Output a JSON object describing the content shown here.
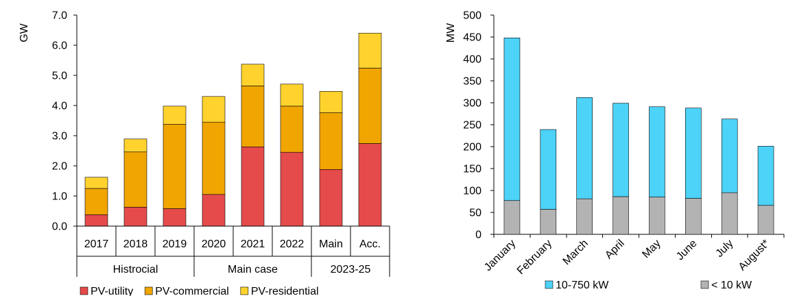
{
  "chart_data": [
    {
      "type": "bar",
      "stacked": true,
      "ylabel": "GW",
      "ylim": [
        0,
        7
      ],
      "yticks": [
        "0.0",
        "1.0",
        "2.0",
        "3.0",
        "4.0",
        "5.0",
        "6.0",
        "7.0"
      ],
      "categories": [
        "2017",
        "2018",
        "2019",
        "2020",
        "2021",
        "2022",
        "Main",
        "Acc."
      ],
      "groups": [
        {
          "label": "Histrocial",
          "span": 3
        },
        {
          "label": "Main case",
          "span": 3
        },
        {
          "label": "2023-25",
          "span": 2
        }
      ],
      "series": [
        {
          "name": "PV-utility",
          "color": "#e54b4b",
          "values": [
            0.38,
            0.63,
            0.58,
            1.05,
            2.63,
            2.45,
            1.88,
            2.74
          ]
        },
        {
          "name": "PV-commercial",
          "color": "#f0a500",
          "values": [
            0.87,
            1.83,
            2.8,
            2.4,
            2.02,
            1.53,
            1.88,
            2.5
          ]
        },
        {
          "name": "PV-residential",
          "color": "#ffd22e",
          "values": [
            0.37,
            0.43,
            0.6,
            0.85,
            0.72,
            0.73,
            0.71,
            1.16
          ]
        }
      ],
      "legend_position": "bottom"
    },
    {
      "type": "bar",
      "stacked": true,
      "ylabel": "MW",
      "ylim": [
        0,
        500
      ],
      "yticks": [
        "0",
        "50",
        "100",
        "150",
        "200",
        "250",
        "300",
        "350",
        "400",
        "450",
        "500"
      ],
      "categories": [
        "January",
        "February",
        "March",
        "April",
        "May",
        "June",
        "July",
        "August*"
      ],
      "series": [
        {
          "name": "< 10 kW",
          "color": "#b3b3b3",
          "values": [
            77,
            57,
            81,
            86,
            85,
            82,
            95,
            66
          ]
        },
        {
          "name": "10-750 kW",
          "color": "#4dd2f8",
          "values": [
            371,
            182,
            231,
            213,
            206,
            206,
            168,
            135
          ]
        }
      ],
      "legend_order": [
        "10-750 kW",
        "< 10 kW"
      ],
      "legend_position": "bottom"
    }
  ]
}
